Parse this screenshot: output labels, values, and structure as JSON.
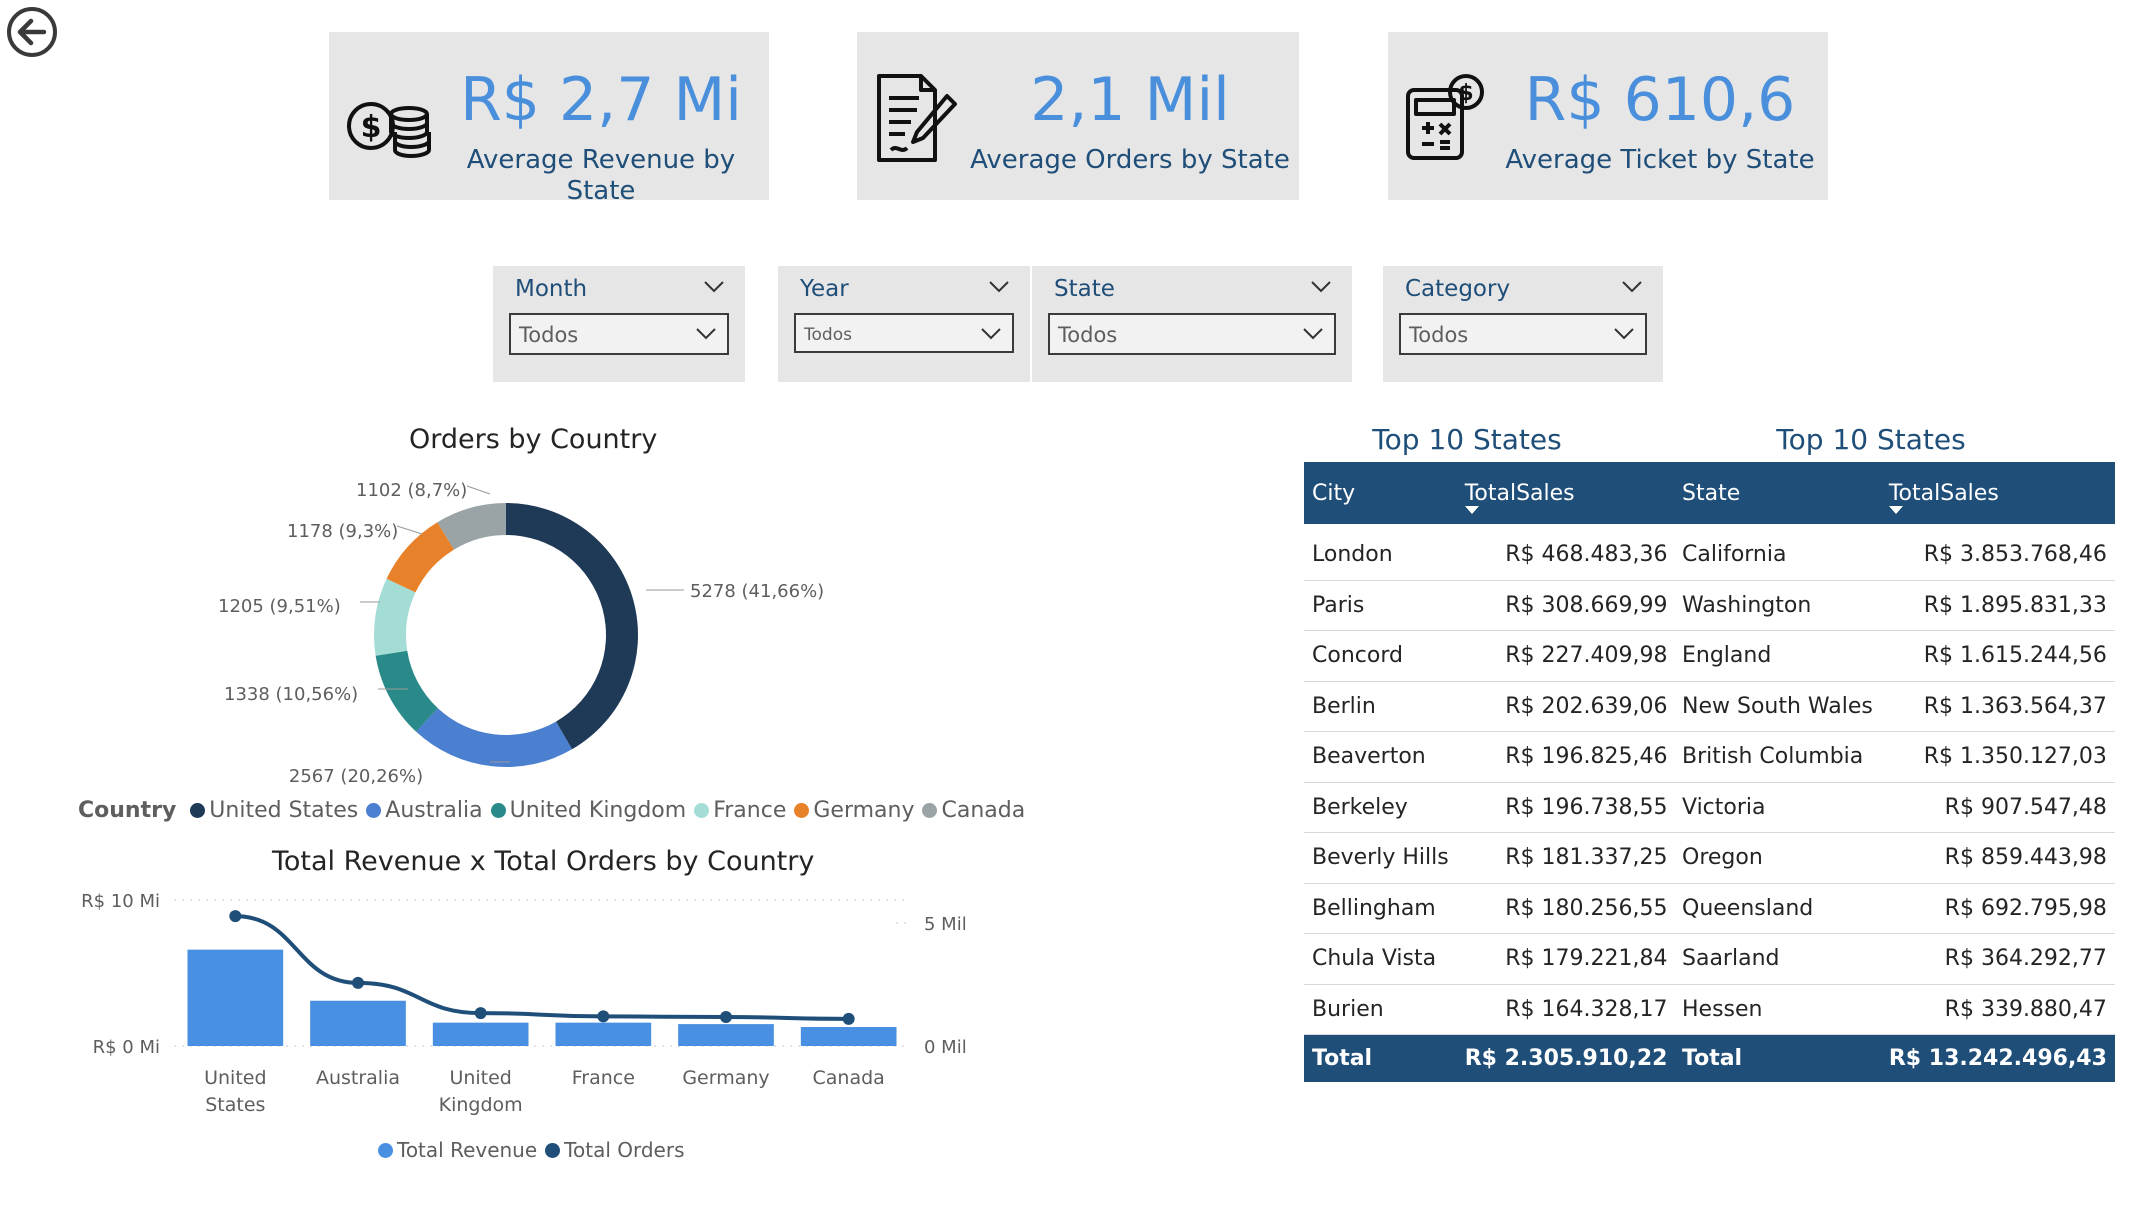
{
  "nav": {
    "back_icon": "back-arrow-circle-icon"
  },
  "kpis": [
    {
      "value": "R$ 2,7 Mi",
      "label": "Average Revenue by State",
      "icon": "coins-dollar-icon"
    },
    {
      "value": "2,1 Mil",
      "label": "Average Orders by State",
      "icon": "document-pen-icon"
    },
    {
      "value": "R$ 610,6",
      "label": "Average Ticket by State",
      "icon": "calculator-dollar-icon"
    }
  ],
  "slicers": [
    {
      "title": "Month",
      "value": "Todos"
    },
    {
      "title": "Year",
      "value": "Todos"
    },
    {
      "title": "State",
      "value": "Todos"
    },
    {
      "title": "Category",
      "value": "Todos"
    }
  ],
  "donut": {
    "title": "Orders by Country",
    "legend_title": "Country",
    "labels": [
      "5278 (41,66%)",
      "2567 (20,26%)",
      "1338 (10,56%)",
      "1205 (9,51%)",
      "1178 (9,3%)",
      "1102 (8,7%)"
    ]
  },
  "combo": {
    "title": "Total Revenue x Total Orders by Country",
    "y_left_ticks": [
      "R$ 10 Mi",
      "R$ 0 Mi"
    ],
    "y_right_ticks": [
      "5 Mil",
      "0 Mil"
    ],
    "category_lines": [
      [
        "United",
        "States"
      ],
      [
        "Australia"
      ],
      [
        "United",
        "Kingdom"
      ],
      [
        "France"
      ],
      [
        "Germany"
      ],
      [
        "Canada"
      ]
    ],
    "legend": [
      "Total Revenue",
      "Total Orders"
    ]
  },
  "chart_data": [
    {
      "type": "pie",
      "title": "Orders by Country",
      "legend_title": "Country",
      "categories": [
        "United States",
        "Australia",
        "United Kingdom",
        "France",
        "Germany",
        "Canada"
      ],
      "values": [
        5278,
        2567,
        1338,
        1205,
        1178,
        1102
      ],
      "percent_labels": [
        "41,66%",
        "20,26%",
        "10,56%",
        "9,51%",
        "9,3%",
        "8,7%"
      ],
      "colors": [
        "#1e3a57",
        "#4b7fcf",
        "#2a8a8a",
        "#a3ddd6",
        "#e8822a",
        "#9aa4a6"
      ],
      "legend_position": "bottom-left"
    },
    {
      "type": "bar",
      "title": "Total Revenue x Total Orders by Country",
      "categories": [
        "United States",
        "Australia",
        "United Kingdom",
        "France",
        "Germany",
        "Canada"
      ],
      "series": [
        {
          "name": "Total Revenue",
          "type": "bar",
          "axis": "left",
          "values": [
            6.6,
            3.1,
            1.6,
            1.6,
            1.5,
            1.3
          ],
          "color": "#4a90e2"
        },
        {
          "name": "Total Orders",
          "type": "line",
          "axis": "right",
          "values": [
            5278,
            2567,
            1338,
            1205,
            1178,
            1102
          ],
          "color": "#1f4e79"
        }
      ],
      "ylim_left": [
        0,
        10
      ],
      "ylim_right": [
        0,
        5000
      ],
      "grid": true,
      "legend_position": "bottom"
    }
  ],
  "tables": [
    {
      "title": "Top 10 States",
      "col1": "City",
      "col2": "TotalSales",
      "rows": [
        [
          "London",
          "R$ 468.483,36"
        ],
        [
          "Paris",
          "R$ 308.669,99"
        ],
        [
          "Concord",
          "R$ 227.409,98"
        ],
        [
          "Berlin",
          "R$ 202.639,06"
        ],
        [
          "Beaverton",
          "R$ 196.825,46"
        ],
        [
          "Berkeley",
          "R$ 196.738,55"
        ],
        [
          "Beverly Hills",
          "R$ 181.337,25"
        ],
        [
          "Bellingham",
          "R$ 180.256,55"
        ],
        [
          "Chula Vista",
          "R$ 179.221,84"
        ],
        [
          "Burien",
          "R$ 164.328,17"
        ]
      ],
      "total_label": "Total",
      "total_value": "R$ 2.305.910,22"
    },
    {
      "title": "Top 10 States",
      "col1": "State",
      "col2": "TotalSales",
      "rows": [
        [
          "California",
          "R$ 3.853.768,46"
        ],
        [
          "Washington",
          "R$ 1.895.831,33"
        ],
        [
          "England",
          "R$ 1.615.244,56"
        ],
        [
          "New South Wales",
          "R$ 1.363.564,37"
        ],
        [
          "British Columbia",
          "R$ 1.350.127,03"
        ],
        [
          "Victoria",
          "R$ 907.547,48"
        ],
        [
          "Oregon",
          "R$ 859.443,98"
        ],
        [
          "Queensland",
          "R$ 692.795,98"
        ],
        [
          "Saarland",
          "R$ 364.292,77"
        ],
        [
          "Hessen",
          "R$ 339.880,47"
        ]
      ],
      "total_label": "Total",
      "total_value": "R$ 13.242.496,43"
    }
  ],
  "colors": {
    "accent_blue": "#4a8fdb",
    "navy": "#1f4e79",
    "card_bg": "#e6e6e6"
  }
}
